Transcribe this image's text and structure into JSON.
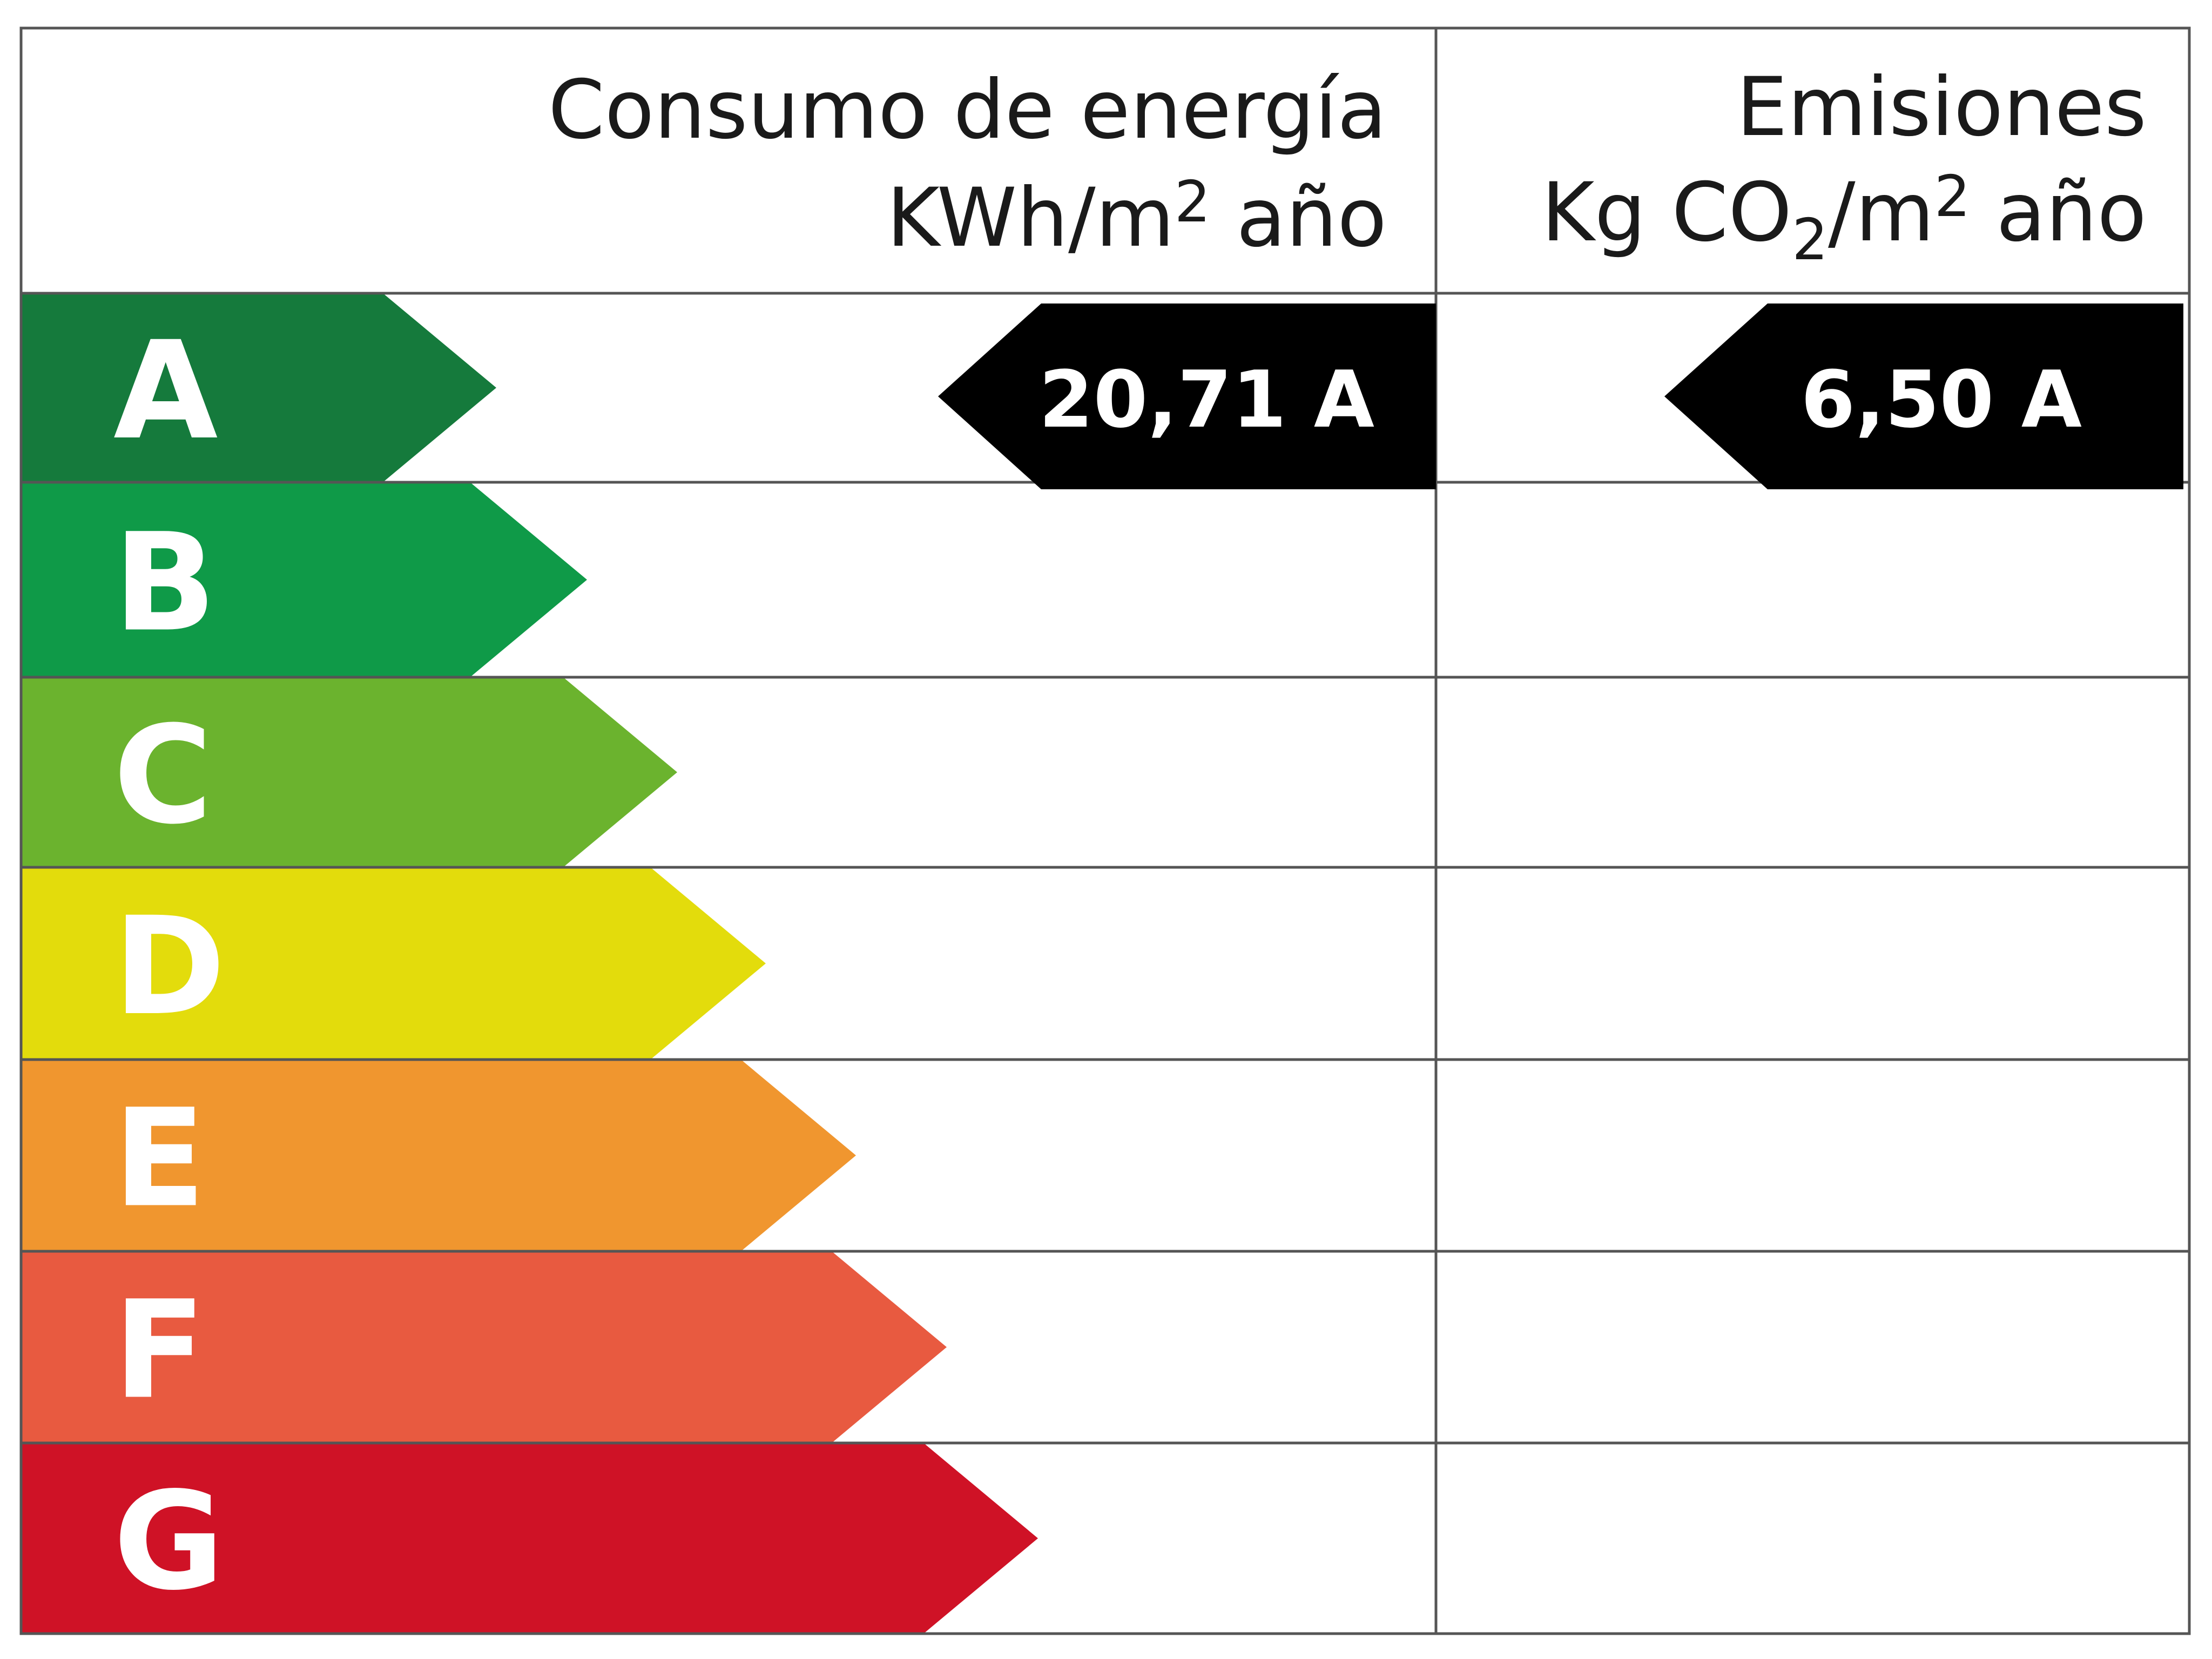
{
  "header": {
    "energy_title": "Consumo de energía",
    "energy_unit_a": "KWh/m",
    "energy_unit_sup": "2",
    "energy_unit_b": " año",
    "emissions_title": "Emisiones",
    "emissions_unit_a": "Kg CO",
    "emissions_unit_sub": "2",
    "emissions_unit_b": "/m",
    "emissions_unit_sup": "2",
    "emissions_unit_c": " año"
  },
  "classes": [
    {
      "letter": "A",
      "color": "#157a3c"
    },
    {
      "letter": "B",
      "color": "#0f9a48"
    },
    {
      "letter": "C",
      "color": "#6bb32e"
    },
    {
      "letter": "D",
      "color": "#e3dc0c"
    },
    {
      "letter": "E",
      "color": "#f0962f"
    },
    {
      "letter": "F",
      "color": "#e85a40"
    },
    {
      "letter": "G",
      "color": "#cf1226"
    }
  ],
  "rating": {
    "energy_value": "20,71 A",
    "energy_class": "A",
    "emissions_value": "6,50 A",
    "emissions_class": "A",
    "indicator_color": "#000000"
  }
}
